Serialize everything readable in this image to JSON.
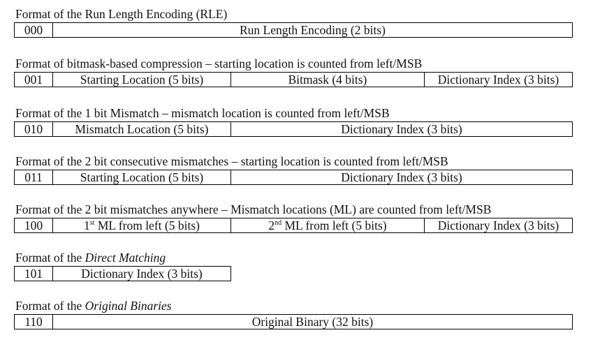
{
  "formats": [
    {
      "title": "Format of the Run Length Encoding (RLE)",
      "code": "000",
      "fields": [
        "Run Length Encoding (2 bits)"
      ]
    },
    {
      "title": "Format of bitmask-based compression – starting location is counted from left/MSB",
      "code": "001",
      "fields": [
        "Starting Location (5 bits)",
        "Bitmask (4 bits)",
        "Dictionary Index (3 bits)"
      ]
    },
    {
      "title": "Format of the 1 bit Mismatch – mismatch location is counted from left/MSB",
      "code": "010",
      "fields": [
        "Mismatch Location (5 bits)",
        "Dictionary Index (3 bits)"
      ]
    },
    {
      "title": "Format of the 2 bit consecutive mismatches – starting location is counted from left/MSB",
      "code": "011",
      "fields": [
        "Starting Location (5 bits)",
        "Dictionary Index (3 bits)"
      ]
    },
    {
      "title": "Format of the 2 bit mismatches anywhere – Mismatch locations (ML) are counted from left/MSB",
      "code": "100",
      "fields": [
        {
          "ordinal": "1",
          "sup": "st",
          "text": " ML from left (5 bits)"
        },
        {
          "ordinal": "2",
          "sup": "nd",
          "text": " ML from left (5 bits)"
        },
        "Dictionary Index (3 bits)"
      ]
    },
    {
      "title_prefix": "Format of the ",
      "title_italic": "Direct Matching",
      "code": "101",
      "fields": [
        "Dictionary Index (3 bits)"
      ]
    },
    {
      "title_prefix": "Format of the ",
      "title_italic": "Original Binaries",
      "code": "110",
      "fields": [
        "Original Binary (32 bits)"
      ]
    }
  ]
}
